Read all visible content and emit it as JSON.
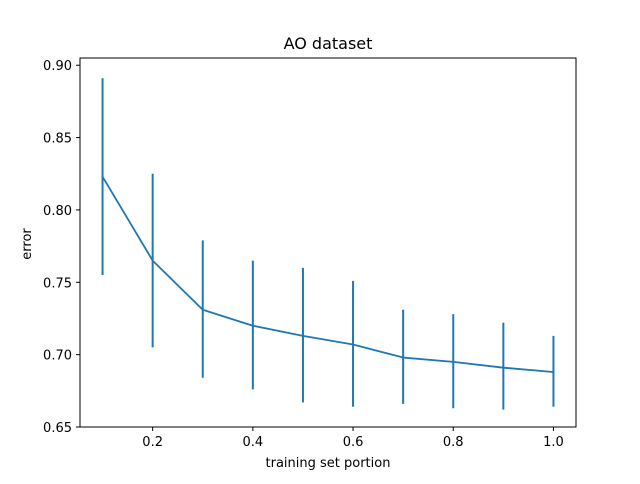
{
  "chart_data": {
    "type": "line",
    "title": "AO dataset",
    "xlabel": "training set portion",
    "ylabel": "error",
    "xlim": [
      0.055,
      1.045
    ],
    "ylim": [
      0.65,
      0.905
    ],
    "xticks": [
      0.2,
      0.4,
      0.6,
      0.8,
      1.0
    ],
    "xtick_labels": [
      "0.2",
      "0.4",
      "0.6",
      "0.8",
      "1.0"
    ],
    "yticks": [
      0.65,
      0.7,
      0.75,
      0.8,
      0.85,
      0.9
    ],
    "ytick_labels": [
      "0.65",
      "0.70",
      "0.75",
      "0.80",
      "0.85",
      "0.90"
    ],
    "grid": false,
    "series": [
      {
        "color": "#1f77b4",
        "x": [
          0.1,
          0.2,
          0.3,
          0.4,
          0.5,
          0.6,
          0.7,
          0.8,
          0.9,
          1.0
        ],
        "y": [
          0.823,
          0.765,
          0.731,
          0.72,
          0.713,
          0.707,
          0.698,
          0.695,
          0.691,
          0.688
        ],
        "err_lower": [
          0.755,
          0.705,
          0.684,
          0.676,
          0.667,
          0.664,
          0.666,
          0.663,
          0.662,
          0.664
        ],
        "err_upper": [
          0.891,
          0.825,
          0.779,
          0.765,
          0.76,
          0.751,
          0.731,
          0.728,
          0.722,
          0.713
        ]
      }
    ]
  }
}
